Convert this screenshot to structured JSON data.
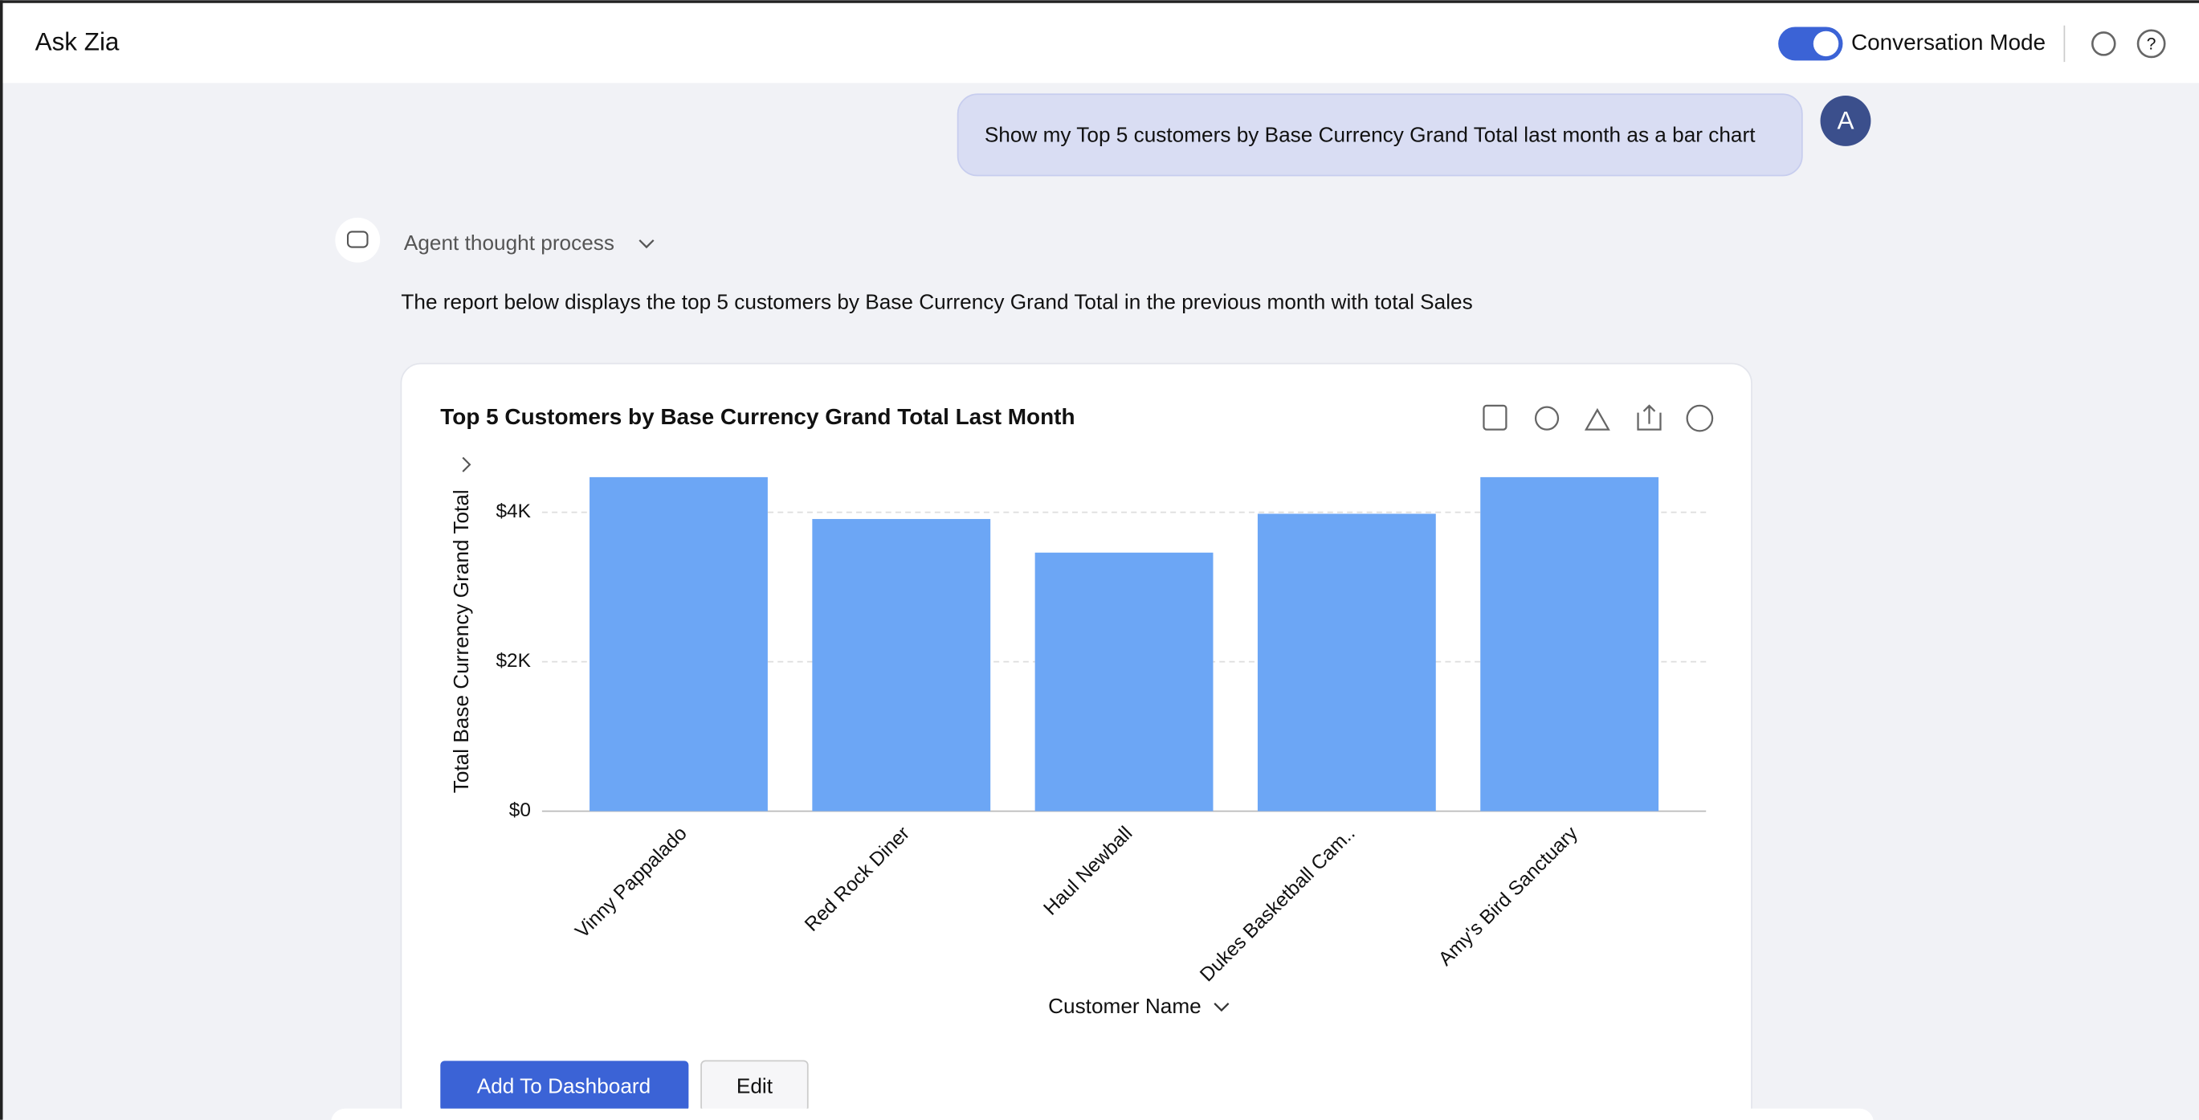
{
  "header": {
    "title": "Ask Zia",
    "toggle_label": "Conversation Mode"
  },
  "conversation": {
    "user_message": "Show my Top 5 customers by Base Currency Grand Total last month as a bar chart",
    "avatar": "A",
    "thought_process": "Agent thought process",
    "response": "The report below displays the top 5 customers by Base Currency Grand Total in the previous month with total Sales"
  },
  "chart_data": {
    "type": "bar",
    "title": "Top 5 Customers by Base Currency Grand Total Last Month",
    "categories": [
      "Vinny Pappalado",
      "Red Rock Diner",
      "Haul Newball",
      "Dukes Basketball Cam..",
      "Amy's Bird Sanctuary"
    ],
    "values": [
      4470,
      3910,
      3460,
      3980,
      4470
    ],
    "color": "#6ca6f5",
    "ylim": [
      0,
      4700
    ],
    "yticks": [
      {
        "value": 0,
        "label": "$0"
      },
      {
        "value": 2000,
        "label": "$2K"
      },
      {
        "value": 4000,
        "label": "$4K"
      }
    ],
    "y_label": "Total Base Currency Grand Total",
    "x_label": "Customer Name",
    "grid": true
  },
  "actions": {
    "primary": "Add To Dashboard",
    "secondary": "Edit"
  }
}
